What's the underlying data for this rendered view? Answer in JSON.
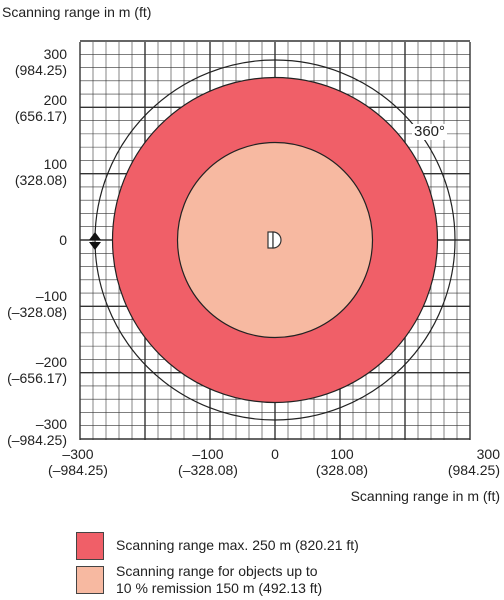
{
  "axis": {
    "y_label": "Scanning range in m (ft)",
    "x_label": "Scanning range in m (ft)",
    "y_ticks": [
      {
        "m": "300",
        "ft": "(984.25)"
      },
      {
        "m": "200",
        "ft": "(656.17)"
      },
      {
        "m": "100",
        "ft": "(328.08)"
      },
      {
        "m": "0",
        "ft": ""
      },
      {
        "m": "–100",
        "ft": "(–328.08)"
      },
      {
        "m": "–200",
        "ft": "(–656.17)"
      },
      {
        "m": "–300",
        "ft": "(–984.25)"
      }
    ],
    "x_ticks": [
      {
        "m": "–300",
        "ft": "(–984.25)"
      },
      {
        "m": "–100",
        "ft": "(–328.08)"
      },
      {
        "m": "0",
        "ft": ""
      },
      {
        "m": "100",
        "ft": "(328.08)"
      },
      {
        "m": "300",
        "ft": "(984.25)"
      }
    ]
  },
  "rotation_label": "360°",
  "ranges": {
    "max_m": 250,
    "remission_m": 150,
    "axis_limit_m": 300
  },
  "colors": {
    "max_range": "#f05f68",
    "remission_range": "#f7b9a1",
    "grid": "#333333"
  },
  "legend": [
    {
      "text": "Scanning range max. 250 m (820.21 ft)"
    },
    {
      "line1": "Scanning range for objects up to",
      "line2": "10 % remission 150 m (492.13 ft)"
    }
  ],
  "icon": "sensor-icon"
}
